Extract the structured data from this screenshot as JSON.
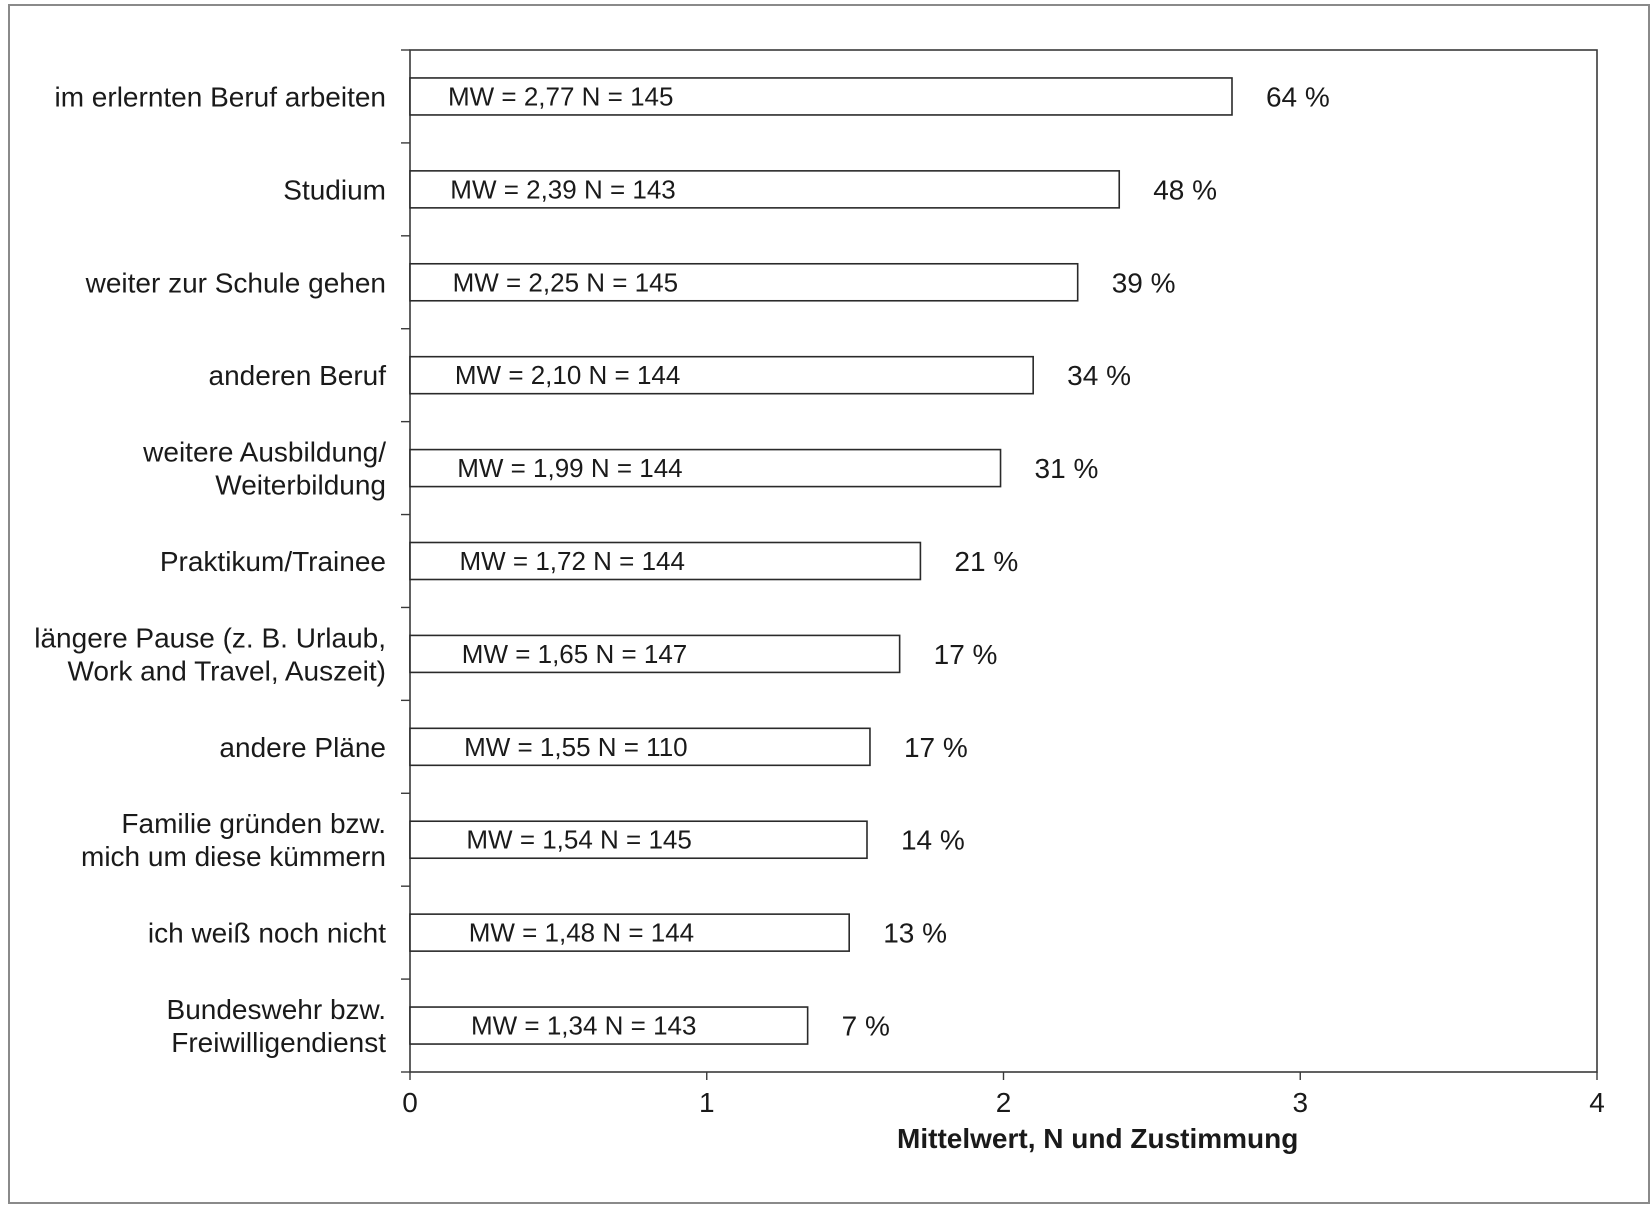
{
  "chart_data": {
    "type": "bar",
    "orientation": "horizontal",
    "xlabel": "Mittelwert, N und Zustimmung",
    "xlim": [
      0,
      4
    ],
    "x_ticks": [
      "0",
      "1",
      "2",
      "3",
      "4"
    ],
    "grid": false,
    "categories": [
      {
        "lines": [
          "im erlernten Beruf arbeiten"
        ],
        "value": 2.77,
        "bar_label": "MW = 2,77   N = 145",
        "percent": "64 %"
      },
      {
        "lines": [
          "Studium"
        ],
        "value": 2.39,
        "bar_label": "MW = 2,39   N = 143",
        "percent": "48 %"
      },
      {
        "lines": [
          "weiter zur Schule gehen"
        ],
        "value": 2.25,
        "bar_label": "MW = 2,25   N = 145",
        "percent": "39 %"
      },
      {
        "lines": [
          "anderen Beruf"
        ],
        "value": 2.1,
        "bar_label": "MW = 2,10   N = 144",
        "percent": "34 %"
      },
      {
        "lines": [
          "weitere Ausbildung/",
          "Weiterbildung"
        ],
        "value": 1.99,
        "bar_label": "MW = 1,99   N = 144",
        "percent": "31 %"
      },
      {
        "lines": [
          "Praktikum/Trainee"
        ],
        "value": 1.72,
        "bar_label": "MW = 1,72   N = 144",
        "percent": "21 %"
      },
      {
        "lines": [
          "längere Pause (z. B. Urlaub,",
          "Work and Travel, Auszeit)"
        ],
        "value": 1.65,
        "bar_label": "MW = 1,65   N = 147",
        "percent": "17 %"
      },
      {
        "lines": [
          "andere Pläne"
        ],
        "value": 1.55,
        "bar_label": "MW = 1,55   N = 110",
        "percent": "17 %"
      },
      {
        "lines": [
          "Familie gründen bzw.",
          "mich um diese kümmern"
        ],
        "value": 1.54,
        "bar_label": "MW = 1,54   N = 145",
        "percent": "14 %"
      },
      {
        "lines": [
          "ich weiß noch nicht"
        ],
        "value": 1.48,
        "bar_label": "MW = 1,48   N = 144",
        "percent": "13 %"
      },
      {
        "lines": [
          "Bundeswehr bzw.",
          "Freiwilligendienst"
        ],
        "value": 1.34,
        "bar_label": "MW = 1,34   N = 143",
        "percent": "7 %"
      }
    ]
  }
}
